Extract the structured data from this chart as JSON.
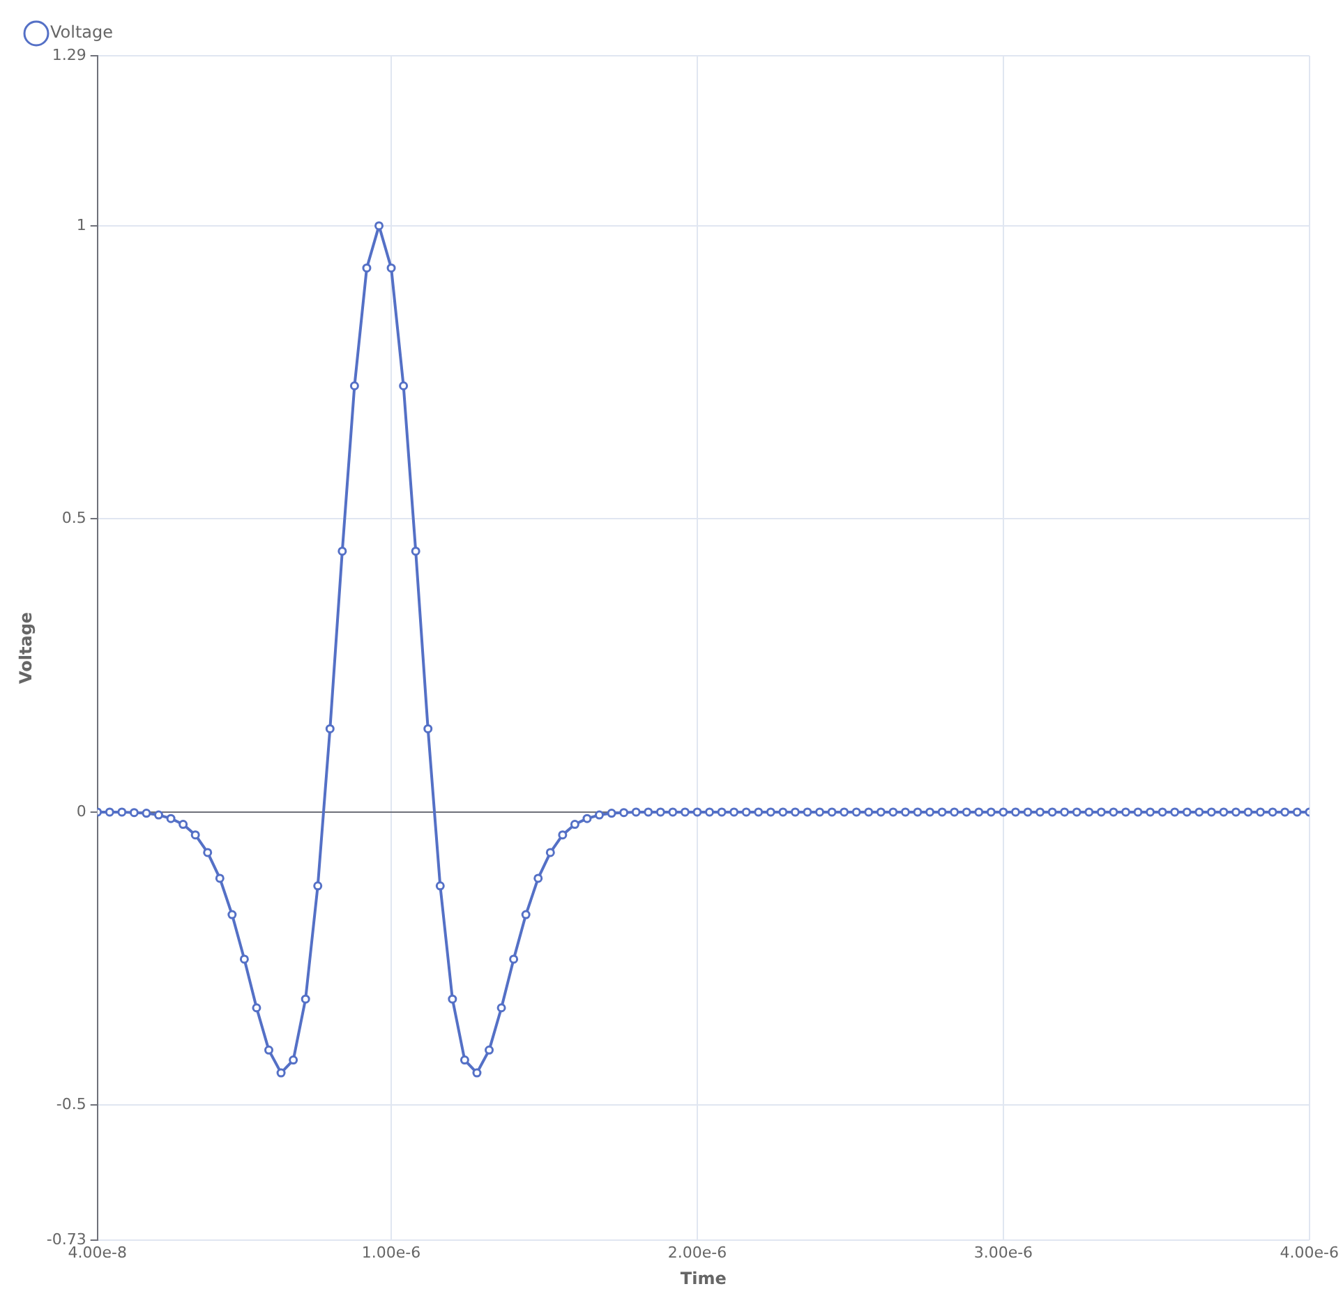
{
  "chart_data": {
    "type": "line",
    "xlabel": "Time",
    "ylabel": "Voltage",
    "x": [
      4e-08,
      8e-08,
      1.2e-07,
      1.6e-07,
      2e-07,
      2.4e-07,
      2.8e-07,
      3.2e-07,
      3.6e-07,
      4e-07,
      4.4e-07,
      4.8e-07,
      5.2e-07,
      5.6e-07,
      6e-07,
      6.4e-07,
      6.8e-07,
      7.2e-07,
      7.6e-07,
      8e-07,
      8.4e-07,
      8.8e-07,
      9.2e-07,
      9.6e-07,
      1e-06,
      1.04e-06,
      1.08e-06,
      1.12e-06,
      1.16e-06,
      1.2e-06,
      1.24e-06,
      1.28e-06,
      1.32e-06,
      1.36e-06,
      1.4e-06,
      1.44e-06,
      1.48e-06,
      1.52e-06,
      1.56e-06,
      1.6e-06,
      1.64e-06,
      1.68e-06,
      1.72e-06,
      1.76e-06,
      1.8e-06,
      1.84e-06,
      1.88e-06,
      1.92e-06,
      1.96e-06,
      2e-06,
      2.04e-06,
      2.08e-06,
      2.12e-06,
      2.16e-06,
      2.2e-06,
      2.24e-06,
      2.28e-06,
      2.32e-06,
      2.36e-06,
      2.4e-06,
      2.44e-06,
      2.48e-06,
      2.52e-06,
      2.56e-06,
      2.6e-06,
      2.64e-06,
      2.68e-06,
      2.72e-06,
      2.76e-06,
      2.8e-06,
      2.84e-06,
      2.88e-06,
      2.92e-06,
      2.96e-06,
      3e-06,
      3.04e-06,
      3.08e-06,
      3.12e-06,
      3.16e-06,
      3.2e-06,
      3.24e-06,
      3.28e-06,
      3.32e-06,
      3.36e-06,
      3.4e-06,
      3.44e-06,
      3.48e-06,
      3.52e-06,
      3.56e-06,
      3.6e-06,
      3.64e-06,
      3.68e-06,
      3.72e-06,
      3.76e-06,
      3.8e-06,
      3.84e-06,
      3.88e-06,
      3.92e-06,
      3.96e-06,
      4e-06
    ],
    "series": [
      {
        "name": "Voltage",
        "color": "#5470c6",
        "values": [
          0,
          0,
          0,
          -0.001,
          -0.002,
          -0.005,
          -0.011,
          -0.021,
          -0.039,
          -0.069,
          -0.113,
          -0.175,
          -0.251,
          -0.334,
          -0.406,
          -0.445,
          -0.423,
          -0.319,
          -0.126,
          0.142,
          0.445,
          0.727,
          0.928,
          1,
          0.928,
          0.727,
          0.445,
          0.142,
          -0.126,
          -0.319,
          -0.423,
          -0.445,
          -0.406,
          -0.334,
          -0.251,
          -0.175,
          -0.113,
          -0.069,
          -0.039,
          -0.021,
          -0.011,
          -0.005,
          -0.002,
          -0.001,
          0,
          0,
          0,
          0,
          0,
          0,
          0,
          0,
          0,
          0,
          0,
          0,
          0,
          0,
          0,
          0,
          0,
          0,
          0,
          0,
          0,
          0,
          0,
          0,
          0,
          0,
          0,
          0,
          0,
          0,
          0,
          0,
          0,
          0,
          0,
          0,
          0,
          0,
          0,
          0,
          0,
          0,
          0,
          0,
          0,
          0,
          0,
          0,
          0,
          0,
          0,
          0,
          0,
          0,
          0,
          0
        ]
      }
    ],
    "xlim": [
      4e-08,
      4e-06
    ],
    "xticks": [
      {
        "value": 4e-08,
        "label": "4.00e-8"
      },
      {
        "value": 1e-06,
        "label": "1.00e-6"
      },
      {
        "value": 2e-06,
        "label": "2.00e-6"
      },
      {
        "value": 3e-06,
        "label": "3.00e-6"
      },
      {
        "value": 4e-06,
        "label": "4.00e-6"
      }
    ],
    "ylim": [
      -0.73,
      1.29
    ],
    "yticks": [
      -0.73,
      -0.5,
      0,
      0.5,
      1,
      1.29
    ],
    "grid": true,
    "legend": "top left",
    "marker": "circle",
    "line_style": "solid"
  }
}
